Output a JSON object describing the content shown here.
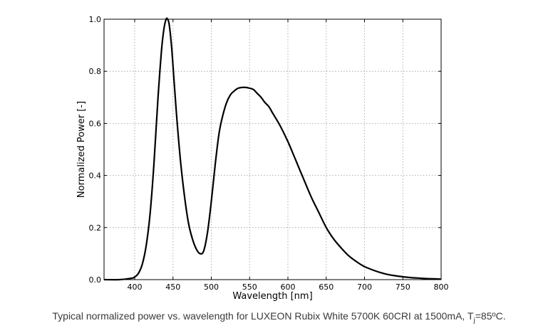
{
  "chart_data": {
    "type": "line",
    "xlabel": "Wavelength [nm]",
    "ylabel": "Normalized Power [-]",
    "xlim": [
      360,
      800
    ],
    "ylim": [
      0,
      1.0
    ],
    "xticks": [
      400,
      450,
      500,
      550,
      600,
      650,
      700,
      750,
      800
    ],
    "xtick_labels": [
      "400",
      "450",
      "500",
      "550",
      "600",
      "650",
      "700",
      "750",
      "800"
    ],
    "yticks": [
      0.0,
      0.2,
      0.4,
      0.6,
      0.8,
      1.0
    ],
    "ytick_labels": [
      "0.0",
      "0.2",
      "0.4",
      "0.6",
      "0.8",
      "1.0"
    ],
    "grid": true,
    "series": [
      {
        "color": "#000000",
        "x": [
          360,
          380,
          395,
          400,
          405,
          410,
          415,
          420,
          425,
          430,
          435,
          438,
          441,
          443,
          445,
          448,
          451,
          455,
          460,
          465,
          470,
          475,
          480,
          485,
          490,
          495,
          500,
          505,
          510,
          515,
          520,
          525,
          530,
          535,
          540,
          545,
          550,
          555,
          560,
          565,
          570,
          575,
          580,
          590,
          600,
          610,
          620,
          630,
          640,
          650,
          660,
          670,
          680,
          690,
          700,
          710,
          720,
          730,
          740,
          750,
          760,
          770,
          780,
          790,
          800
        ],
        "y": [
          0.0,
          0.0,
          0.005,
          0.01,
          0.025,
          0.06,
          0.13,
          0.25,
          0.44,
          0.68,
          0.88,
          0.96,
          1.0,
          1.0,
          0.98,
          0.9,
          0.78,
          0.62,
          0.45,
          0.32,
          0.22,
          0.16,
          0.12,
          0.1,
          0.11,
          0.18,
          0.3,
          0.44,
          0.56,
          0.63,
          0.68,
          0.71,
          0.725,
          0.735,
          0.738,
          0.738,
          0.735,
          0.73,
          0.715,
          0.7,
          0.68,
          0.665,
          0.64,
          0.59,
          0.53,
          0.46,
          0.39,
          0.32,
          0.26,
          0.2,
          0.155,
          0.12,
          0.09,
          0.068,
          0.05,
          0.038,
          0.028,
          0.02,
          0.015,
          0.011,
          0.008,
          0.006,
          0.004,
          0.003,
          0.002
        ]
      }
    ]
  },
  "caption": {
    "text_before": "Typical normalized power vs. wavelength for LUXEON Rubix White 5700K 60CRI at 1500mA, T",
    "subscript": "j",
    "text_after": "=85ºC."
  }
}
